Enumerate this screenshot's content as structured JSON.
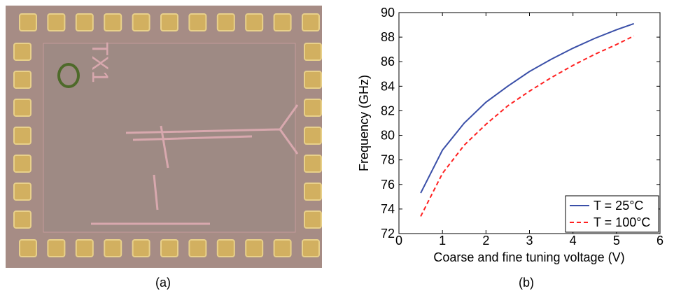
{
  "panels": [
    {
      "label": "(a)",
      "chip_label": "TX1"
    },
    {
      "label": "(b)"
    }
  ],
  "chart_data": {
    "type": "line",
    "xlabel": "Coarse and fine tuning voltage (V)",
    "ylabel": "Frequency (GHz)",
    "x": [
      0.5,
      1,
      1.5,
      2,
      2.5,
      3,
      3.5,
      4,
      4.5,
      5,
      5.4
    ],
    "series": [
      {
        "name": "T = 25°C",
        "color": "#3a4fa8",
        "dash": "solid",
        "values": [
          75.3,
          78.8,
          81.0,
          82.7,
          84.0,
          85.2,
          86.2,
          87.1,
          87.9,
          88.6,
          89.1
        ]
      },
      {
        "name": "T = 100°C",
        "color": "#ff2020",
        "dash": "dashed",
        "values": [
          73.4,
          76.9,
          79.2,
          80.9,
          82.4,
          83.6,
          84.7,
          85.7,
          86.6,
          87.4,
          88.1
        ]
      }
    ],
    "xlim": [
      0,
      6
    ],
    "xticks": [
      0,
      1,
      2,
      3,
      4,
      5,
      6
    ],
    "ylim": [
      72,
      90
    ],
    "yticks": [
      72,
      74,
      76,
      78,
      80,
      82,
      84,
      86,
      88,
      90
    ],
    "legend": "lower right"
  }
}
